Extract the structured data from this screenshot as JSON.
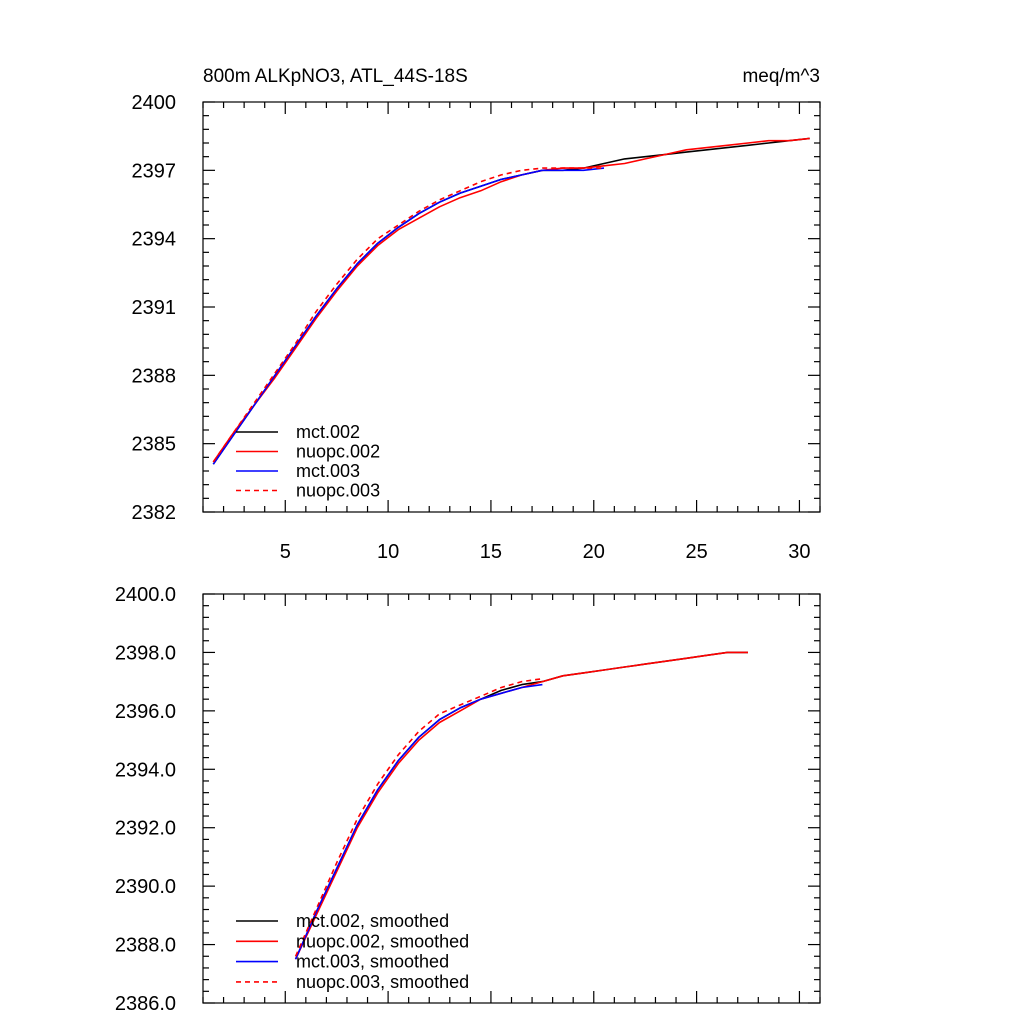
{
  "chart_data": [
    {
      "type": "line",
      "title": "800m ALKpNO3, ATL_44S-18S",
      "units": "meq/m^3",
      "xlim": [
        1,
        31
      ],
      "ylim": [
        2382,
        2400
      ],
      "xticks": [
        5,
        10,
        15,
        20,
        25,
        30
      ],
      "xtick_labels": [
        "5",
        "10",
        "15",
        "20",
        "25",
        "30"
      ],
      "yticks": [
        2382,
        2385,
        2388,
        2391,
        2394,
        2397,
        2400
      ],
      "ytick_labels": [
        "2382",
        "2385",
        "2388",
        "2391",
        "2394",
        "2397",
        "2400"
      ],
      "legend_position": "bottom-left",
      "series": [
        {
          "name": "mct.002",
          "color": "#000000",
          "dash": "solid",
          "x": [
            1.5,
            2.5,
            3.5,
            4.5,
            5.5,
            6.5,
            7.5,
            8.5,
            9.5,
            10.5,
            11.5,
            12.5,
            13.5,
            14.5,
            15.5,
            16.5,
            17.5,
            18.5,
            19.5,
            20.5,
            21.5,
            22.5,
            23.5,
            24.5,
            25.5,
            26.5,
            27.5,
            28.5,
            29.5,
            30.5
          ],
          "y": [
            2384.1,
            2385.4,
            2386.7,
            2388.0,
            2389.3,
            2390.6,
            2391.8,
            2392.9,
            2393.8,
            2394.5,
            2395.1,
            2395.6,
            2396.0,
            2396.3,
            2396.6,
            2396.8,
            2397.0,
            2397.0,
            2397.1,
            2397.3,
            2397.5,
            2397.6,
            2397.7,
            2397.8,
            2397.9,
            2398.0,
            2398.1,
            2398.2,
            2398.3,
            2398.4
          ]
        },
        {
          "name": "nuopc.002",
          "color": "#ff0000",
          "dash": "solid",
          "x": [
            1.5,
            2.5,
            3.5,
            4.5,
            5.5,
            6.5,
            7.5,
            8.5,
            9.5,
            10.5,
            11.5,
            12.5,
            13.5,
            14.5,
            15.5,
            16.5,
            17.5,
            18.5,
            19.5,
            20.5,
            21.5,
            22.5,
            23.5,
            24.5,
            25.5,
            26.5,
            27.5,
            28.5,
            29.5,
            30.5
          ],
          "y": [
            2384.2,
            2385.5,
            2386.7,
            2387.9,
            2389.2,
            2390.5,
            2391.7,
            2392.8,
            2393.7,
            2394.4,
            2394.9,
            2395.4,
            2395.8,
            2396.1,
            2396.5,
            2396.8,
            2397.0,
            2397.1,
            2397.1,
            2397.2,
            2397.3,
            2397.5,
            2397.7,
            2397.9,
            2398.0,
            2398.1,
            2398.2,
            2398.3,
            2398.3,
            2398.4
          ]
        },
        {
          "name": "mct.003",
          "color": "#0000ff",
          "dash": "solid",
          "x": [
            1.5,
            2.5,
            3.5,
            4.5,
            5.5,
            6.5,
            7.5,
            8.5,
            9.5,
            10.5,
            11.5,
            12.5,
            13.5,
            14.5,
            15.5,
            16.5,
            17.5,
            18.5,
            19.5,
            20.5
          ],
          "y": [
            2384.1,
            2385.4,
            2386.7,
            2388.0,
            2389.3,
            2390.6,
            2391.8,
            2392.9,
            2393.8,
            2394.5,
            2395.1,
            2395.6,
            2396.0,
            2396.3,
            2396.6,
            2396.8,
            2397.0,
            2397.0,
            2397.0,
            2397.1
          ]
        },
        {
          "name": "nuopc.003",
          "color": "#ff0000",
          "dash": "dashed",
          "x": [
            1.5,
            2.5,
            3.5,
            4.5,
            5.5,
            6.5,
            7.5,
            8.5,
            9.5,
            10.5,
            11.5,
            12.5,
            13.5,
            14.5,
            15.5,
            16.5,
            17.5,
            18.5,
            19.5,
            20.5
          ],
          "y": [
            2384.2,
            2385.5,
            2386.8,
            2388.1,
            2389.4,
            2390.8,
            2392.0,
            2393.1,
            2394.0,
            2394.6,
            2395.2,
            2395.7,
            2396.1,
            2396.5,
            2396.8,
            2397.0,
            2397.1,
            2397.1,
            2397.1,
            2397.1
          ]
        }
      ]
    },
    {
      "type": "line",
      "xlim": [
        1,
        31
      ],
      "ylim": [
        2386.0,
        2400.0
      ],
      "xticks": [
        5,
        10,
        15,
        20,
        25,
        30
      ],
      "xtick_labels": [
        "",
        "",
        "",
        "",
        "",
        ""
      ],
      "yticks": [
        2386.0,
        2388.0,
        2390.0,
        2392.0,
        2394.0,
        2396.0,
        2398.0,
        2400.0
      ],
      "ytick_labels": [
        "2386.0",
        "2388.0",
        "2390.0",
        "2392.0",
        "2394.0",
        "2396.0",
        "2398.0",
        "2400.0"
      ],
      "legend_position": "bottom-left",
      "series": [
        {
          "name": "mct.002, smoothed",
          "color": "#000000",
          "dash": "solid",
          "x": [
            5.5,
            6.5,
            7.5,
            8.5,
            9.5,
            10.5,
            11.5,
            12.5,
            13.5,
            14.5,
            15.5,
            16.5,
            17.5,
            18.5,
            19.5,
            20.5,
            21.5,
            22.5,
            23.5,
            24.5,
            25.5,
            26.5,
            27.5
          ],
          "y": [
            2387.5,
            2389.1,
            2390.6,
            2392.1,
            2393.3,
            2394.3,
            2395.1,
            2395.7,
            2396.1,
            2396.4,
            2396.7,
            2396.9,
            2397.0,
            2397.2,
            2397.3,
            2397.4,
            2397.5,
            2397.6,
            2397.7,
            2397.8,
            2397.9,
            2398.0,
            2398.0
          ]
        },
        {
          "name": "nuopc.002, smoothed",
          "color": "#ff0000",
          "dash": "solid",
          "x": [
            5.5,
            6.5,
            7.5,
            8.5,
            9.5,
            10.5,
            11.5,
            12.5,
            13.5,
            14.5,
            15.5,
            16.5,
            17.5,
            18.5,
            19.5,
            20.5,
            21.5,
            22.5,
            23.5,
            24.5,
            25.5,
            26.5,
            27.5
          ],
          "y": [
            2387.5,
            2389.0,
            2390.5,
            2392.0,
            2393.2,
            2394.2,
            2395.0,
            2395.6,
            2396.0,
            2396.4,
            2396.6,
            2396.8,
            2397.0,
            2397.2,
            2397.3,
            2397.4,
            2397.5,
            2397.6,
            2397.7,
            2397.8,
            2397.9,
            2398.0,
            2398.0
          ]
        },
        {
          "name": "mct.003, smoothed",
          "color": "#0000ff",
          "dash": "solid",
          "x": [
            5.5,
            6.5,
            7.5,
            8.5,
            9.5,
            10.5,
            11.5,
            12.5,
            13.5,
            14.5,
            15.5,
            16.5,
            17.5
          ],
          "y": [
            2387.5,
            2389.1,
            2390.6,
            2392.1,
            2393.3,
            2394.3,
            2395.1,
            2395.7,
            2396.1,
            2396.4,
            2396.6,
            2396.8,
            2396.9
          ]
        },
        {
          "name": "nuopc.003, smoothed",
          "color": "#ff0000",
          "dash": "dashed",
          "x": [
            5.5,
            6.5,
            7.5,
            8.5,
            9.5,
            10.5,
            11.5,
            12.5,
            13.5,
            14.5,
            15.5,
            16.5,
            17.5
          ],
          "y": [
            2387.6,
            2389.2,
            2390.8,
            2392.3,
            2393.5,
            2394.5,
            2395.3,
            2395.9,
            2396.2,
            2396.5,
            2396.8,
            2397.0,
            2397.1
          ]
        }
      ]
    }
  ]
}
